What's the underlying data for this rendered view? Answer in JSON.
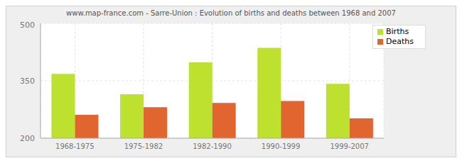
{
  "chart_data": {
    "type": "bar",
    "title": "www.map-france.com - Sarre-Union : Evolution of births and deaths between 1968 and 2007",
    "categories": [
      "1968-1975",
      "1975-1982",
      "1982-1990",
      "1990-1999",
      "1999-2007"
    ],
    "series": [
      {
        "name": "Births",
        "color": "#bde12e",
        "values": [
          368,
          315,
          398,
          436,
          342
        ]
      },
      {
        "name": "Deaths",
        "color": "#e0652e",
        "values": [
          261,
          281,
          292,
          297,
          252
        ]
      }
    ],
    "ylim": [
      200,
      500
    ],
    "yticks": [
      200,
      350,
      500
    ],
    "grid": true,
    "legend": "top-right"
  }
}
